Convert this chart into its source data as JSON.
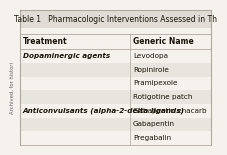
{
  "title": "Table 1   Pharmacologic Interventions Assessed in Th",
  "col1_header": "Treatment",
  "col2_header": "Generic Name",
  "rows": [
    {
      "treatment": "Dopaminergic agents",
      "bold": true,
      "generic": "Levodopa"
    },
    {
      "treatment": "",
      "bold": false,
      "generic": "Ropinirole"
    },
    {
      "treatment": "",
      "bold": false,
      "generic": "Pramipexole"
    },
    {
      "treatment": "",
      "bold": false,
      "generic": "Rotigotine patch"
    },
    {
      "treatment": "Anticonvulsants (alpha-2-delta ligands)",
      "bold": true,
      "generic": "Gabapentin enacarb"
    },
    {
      "treatment": "",
      "bold": false,
      "generic": "Gabapentin"
    },
    {
      "treatment": "",
      "bold": false,
      "generic": "Pregabalin"
    }
  ],
  "bg_white": "#f5f2ee",
  "bg_shaded": "#e8e4de",
  "title_bg": "#e0dbd4",
  "border_color": "#b0a898",
  "text_color": "#1a1508",
  "title_fontsize": 5.5,
  "header_fontsize": 5.5,
  "body_fontsize": 5.2,
  "col_split": 0.575,
  "side_label": "Archived, for histori"
}
